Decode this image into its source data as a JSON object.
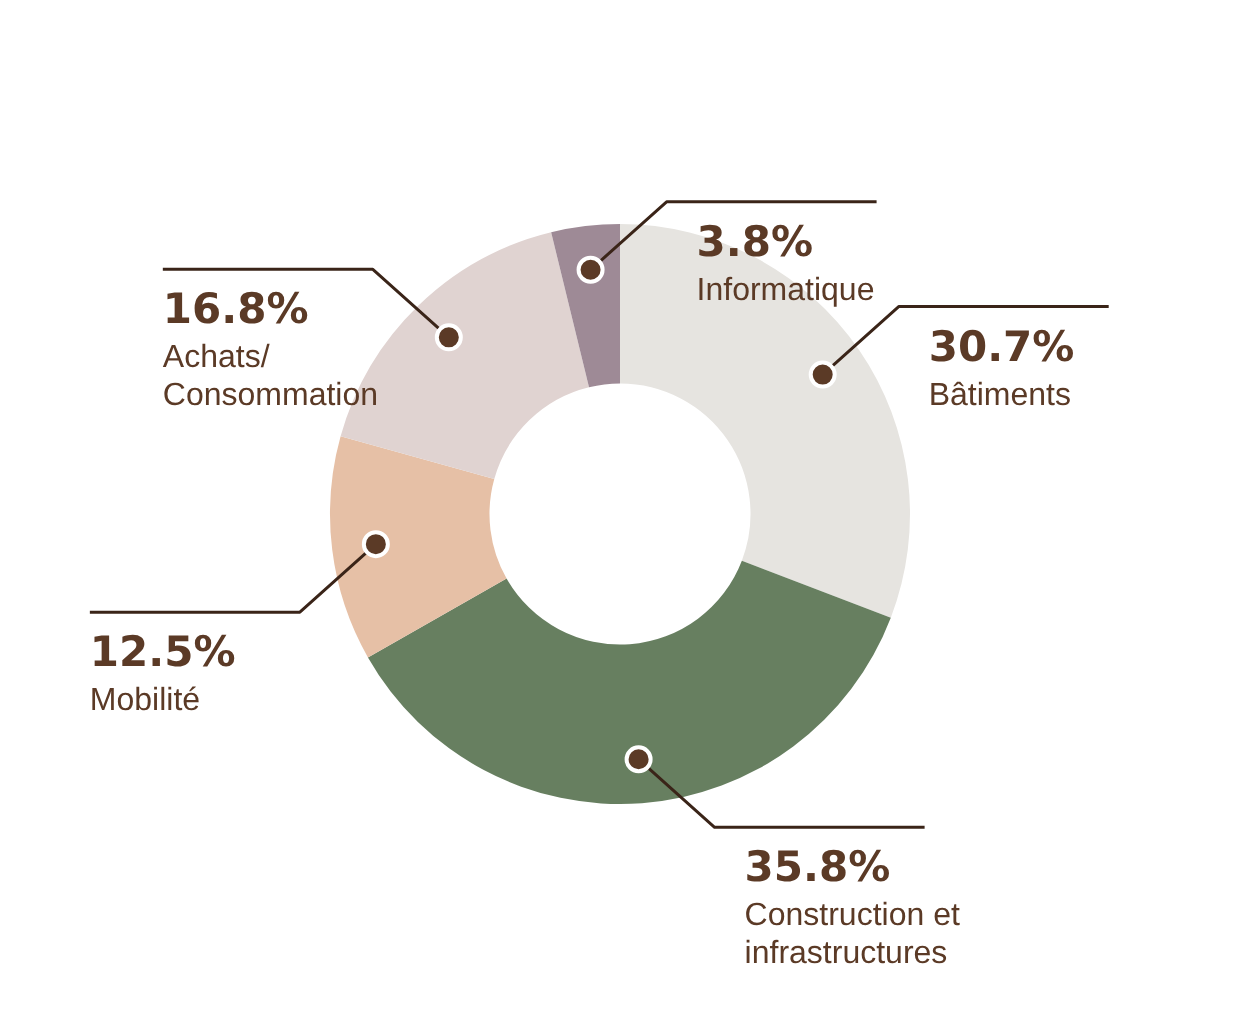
{
  "chart_data": {
    "type": "donut",
    "categories": [
      "Bâtiments",
      "Construction et infrastructures",
      "Mobilité",
      "Achats/ Consommation",
      "Informatique"
    ],
    "values": [
      30.7,
      35.8,
      12.5,
      16.8,
      3.8
    ],
    "colors": [
      "#e6e4e0",
      "#677f60",
      "#e6c0a6",
      "#e0d3d1",
      "#9e8a96"
    ],
    "value_labels": [
      "30.7%",
      "35.8%",
      "12.5%",
      "16.8%",
      "3.8%"
    ],
    "legend": false
  }
}
